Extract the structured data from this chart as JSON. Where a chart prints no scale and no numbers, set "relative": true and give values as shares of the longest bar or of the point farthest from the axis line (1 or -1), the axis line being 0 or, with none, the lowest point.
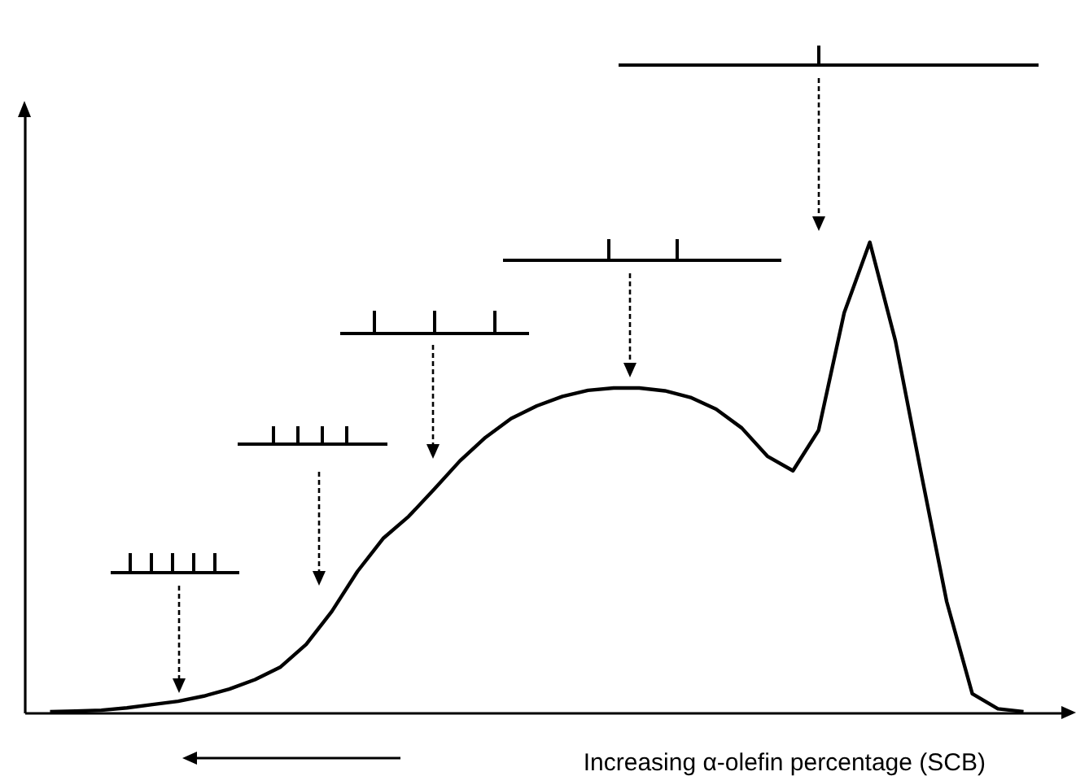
{
  "chart_data": {
    "type": "line",
    "relative": true,
    "xlabel": "Increasing α-olefin percentage (SCB)",
    "color": "#000000",
    "categories": [
      null,
      null,
      null,
      null,
      null,
      null,
      null,
      null,
      null,
      null,
      null,
      null,
      null,
      null,
      null,
      null,
      null,
      null,
      null,
      null,
      null,
      null,
      null,
      null,
      null,
      null,
      null,
      null,
      null,
      null,
      null,
      null,
      null,
      null,
      null,
      null,
      null,
      null,
      null
    ],
    "values": [
      0.002,
      0.003,
      0.005,
      0.01,
      0.017,
      0.024,
      0.035,
      0.05,
      0.07,
      0.097,
      0.145,
      0.215,
      0.3,
      0.37,
      0.417,
      0.475,
      0.535,
      0.585,
      0.625,
      0.652,
      0.672,
      0.685,
      0.69,
      0.69,
      0.684,
      0.67,
      0.645,
      0.605,
      0.545,
      0.514,
      0.6,
      0.85,
      1,
      0.79,
      0.51,
      0.236,
      0.04,
      0.008,
      0.002
    ]
  }
}
